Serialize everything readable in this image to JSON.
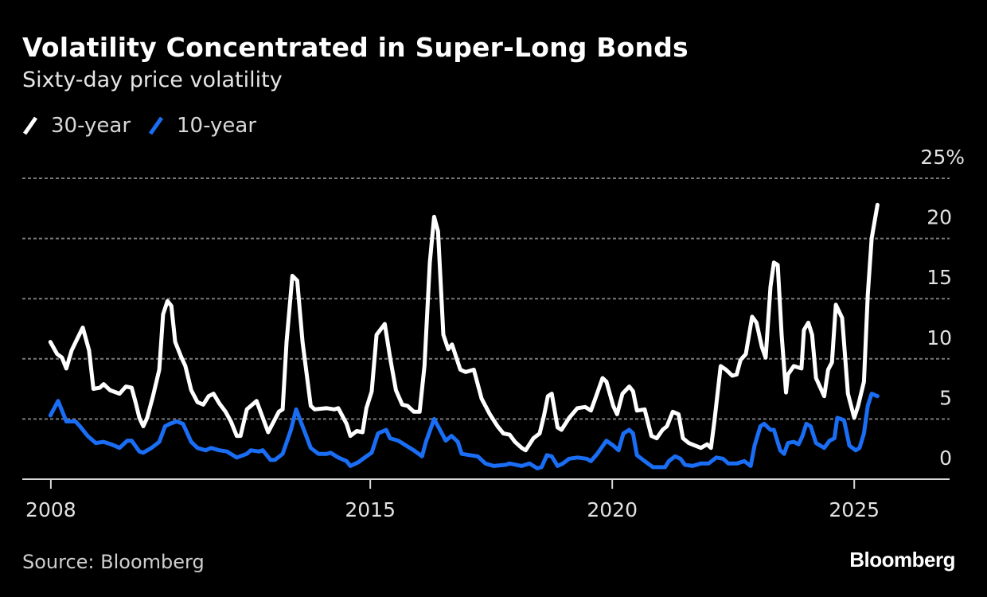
{
  "header": {
    "title": "Volatility Concentrated in Super-Long Bonds",
    "subtitle": "Sixty-day price volatility"
  },
  "footer": {
    "source": "Source: Bloomberg",
    "logo": "Bloomberg"
  },
  "colors": {
    "background": "#000000",
    "series_30y": "#ffffff",
    "series_10y": "#1a6ef5",
    "grid": "#7a7a7a",
    "axis": "#d9d9d9"
  },
  "chart_data": {
    "type": "line",
    "title": "Volatility Concentrated in Super-Long Bonds",
    "subtitle": "Sixty-day price volatility",
    "xlabel": "",
    "ylabel": "",
    "xlim": [
      2007.81,
      2026.97
    ],
    "ylim": [
      0,
      25
    ],
    "grid": true,
    "legend_position": "top-left",
    "y_ticks": [
      {
        "value": 0,
        "label": "0"
      },
      {
        "value": 5,
        "label": "5"
      },
      {
        "value": 10,
        "label": "10"
      },
      {
        "value": 15,
        "label": "15"
      },
      {
        "value": 20,
        "label": "20"
      },
      {
        "value": 25,
        "label": "25%"
      }
    ],
    "x_ticks": [
      {
        "value": 2008.4,
        "label": "2008"
      },
      {
        "value": 2015,
        "label": "2015"
      },
      {
        "value": 2020,
        "label": "2020"
      },
      {
        "value": 2025,
        "label": "2025"
      }
    ],
    "series": [
      {
        "name": "30-year",
        "color": "#ffffff",
        "points": [
          [
            2008.39,
            11.4
          ],
          [
            2008.53,
            10.4
          ],
          [
            2008.63,
            10.1
          ],
          [
            2008.72,
            9.2
          ],
          [
            2008.83,
            10.7
          ],
          [
            2008.95,
            11.7
          ],
          [
            2009.06,
            12.6
          ],
          [
            2009.19,
            10.7
          ],
          [
            2009.28,
            7.5
          ],
          [
            2009.41,
            7.6
          ],
          [
            2009.49,
            7.9
          ],
          [
            2009.62,
            7.4
          ],
          [
            2009.82,
            7.1
          ],
          [
            2009.95,
            7.7
          ],
          [
            2010.07,
            7.6
          ],
          [
            2010.15,
            6.4
          ],
          [
            2010.23,
            5.1
          ],
          [
            2010.31,
            4.4
          ],
          [
            2010.39,
            5.1
          ],
          [
            2010.51,
            6.9
          ],
          [
            2010.64,
            9.1
          ],
          [
            2010.72,
            13.7
          ],
          [
            2010.81,
            14.8
          ],
          [
            2010.89,
            14.4
          ],
          [
            2010.97,
            11.4
          ],
          [
            2011.09,
            10.2
          ],
          [
            2011.18,
            9.4
          ],
          [
            2011.3,
            7.4
          ],
          [
            2011.43,
            6.4
          ],
          [
            2011.55,
            6.2
          ],
          [
            2011.66,
            6.9
          ],
          [
            2011.76,
            7.1
          ],
          [
            2011.88,
            6.3
          ],
          [
            2012.01,
            5.6
          ],
          [
            2012.12,
            4.8
          ],
          [
            2012.24,
            3.6
          ],
          [
            2012.32,
            3.6
          ],
          [
            2012.45,
            5.8
          ],
          [
            2012.65,
            6.5
          ],
          [
            2012.89,
            3.9
          ],
          [
            2013.11,
            5.6
          ],
          [
            2013.19,
            5.8
          ],
          [
            2013.27,
            11.4
          ],
          [
            2013.39,
            16.9
          ],
          [
            2013.49,
            16.5
          ],
          [
            2013.6,
            11.4
          ],
          [
            2013.77,
            6.1
          ],
          [
            2013.85,
            5.8
          ],
          [
            2014.1,
            5.9
          ],
          [
            2014.26,
            5.8
          ],
          [
            2014.34,
            5.9
          ],
          [
            2014.51,
            4.6
          ],
          [
            2014.59,
            3.6
          ],
          [
            2014.72,
            4.0
          ],
          [
            2014.84,
            3.9
          ],
          [
            2014.92,
            5.9
          ],
          [
            2015.03,
            7.3
          ],
          [
            2015.13,
            12.0
          ],
          [
            2015.3,
            12.9
          ],
          [
            2015.41,
            10.1
          ],
          [
            2015.53,
            7.4
          ],
          [
            2015.66,
            6.2
          ],
          [
            2015.77,
            6.1
          ],
          [
            2015.9,
            5.6
          ],
          [
            2016.02,
            5.6
          ],
          [
            2016.12,
            9.4
          ],
          [
            2016.23,
            18.0
          ],
          [
            2016.32,
            21.8
          ],
          [
            2016.4,
            20.6
          ],
          [
            2016.51,
            12.0
          ],
          [
            2016.61,
            10.8
          ],
          [
            2016.69,
            11.2
          ],
          [
            2016.86,
            9.1
          ],
          [
            2016.97,
            8.9
          ],
          [
            2017.14,
            9.1
          ],
          [
            2017.3,
            6.7
          ],
          [
            2017.47,
            5.4
          ],
          [
            2017.63,
            4.4
          ],
          [
            2017.75,
            3.8
          ],
          [
            2017.88,
            3.7
          ],
          [
            2017.99,
            3.1
          ],
          [
            2018.13,
            2.6
          ],
          [
            2018.21,
            2.4
          ],
          [
            2018.37,
            3.4
          ],
          [
            2018.5,
            3.8
          ],
          [
            2018.59,
            5.3
          ],
          [
            2018.67,
            6.9
          ],
          [
            2018.75,
            7.1
          ],
          [
            2018.87,
            4.3
          ],
          [
            2018.95,
            4.1
          ],
          [
            2019.11,
            5.1
          ],
          [
            2019.28,
            5.9
          ],
          [
            2019.44,
            6.0
          ],
          [
            2019.56,
            5.7
          ],
          [
            2019.65,
            6.7
          ],
          [
            2019.8,
            8.4
          ],
          [
            2019.88,
            8.1
          ],
          [
            2020.02,
            6.1
          ],
          [
            2020.1,
            5.4
          ],
          [
            2020.21,
            7.1
          ],
          [
            2020.35,
            7.7
          ],
          [
            2020.43,
            7.3
          ],
          [
            2020.51,
            5.7
          ],
          [
            2020.67,
            5.8
          ],
          [
            2020.81,
            3.6
          ],
          [
            2020.92,
            3.4
          ],
          [
            2021.04,
            4.1
          ],
          [
            2021.13,
            4.4
          ],
          [
            2021.25,
            5.6
          ],
          [
            2021.37,
            5.4
          ],
          [
            2021.46,
            3.4
          ],
          [
            2021.58,
            3.0
          ],
          [
            2021.83,
            2.6
          ],
          [
            2021.96,
            2.9
          ],
          [
            2022.04,
            2.6
          ],
          [
            2022.11,
            4.8
          ],
          [
            2022.24,
            9.4
          ],
          [
            2022.35,
            9.1
          ],
          [
            2022.48,
            8.6
          ],
          [
            2022.57,
            8.7
          ],
          [
            2022.65,
            9.9
          ],
          [
            2022.76,
            10.4
          ],
          [
            2022.89,
            13.5
          ],
          [
            2022.98,
            13.0
          ],
          [
            2023.09,
            11.0
          ],
          [
            2023.17,
            10.1
          ],
          [
            2023.27,
            16.0
          ],
          [
            2023.34,
            18.0
          ],
          [
            2023.42,
            17.8
          ],
          [
            2023.5,
            12.0
          ],
          [
            2023.59,
            7.2
          ],
          [
            2023.63,
            8.7
          ],
          [
            2023.75,
            9.4
          ],
          [
            2023.91,
            9.2
          ],
          [
            2023.96,
            12.4
          ],
          [
            2024.05,
            13.0
          ],
          [
            2024.13,
            12.0
          ],
          [
            2024.21,
            8.4
          ],
          [
            2024.38,
            6.9
          ],
          [
            2024.46,
            9.1
          ],
          [
            2024.54,
            9.7
          ],
          [
            2024.62,
            14.5
          ],
          [
            2024.75,
            13.4
          ],
          [
            2024.87,
            7.1
          ],
          [
            2025.0,
            5.1
          ],
          [
            2025.08,
            6.1
          ],
          [
            2025.2,
            8.1
          ],
          [
            2025.28,
            15.3
          ],
          [
            2025.36,
            20.0
          ],
          [
            2025.48,
            22.8
          ]
        ]
      },
      {
        "name": "10-year",
        "color": "#1a6ef5",
        "points": [
          [
            2008.39,
            5.3
          ],
          [
            2008.55,
            6.5
          ],
          [
            2008.72,
            4.8
          ],
          [
            2008.91,
            4.8
          ],
          [
            2009.0,
            4.4
          ],
          [
            2009.16,
            3.6
          ],
          [
            2009.33,
            3.0
          ],
          [
            2009.49,
            3.1
          ],
          [
            2009.65,
            2.9
          ],
          [
            2009.82,
            2.6
          ],
          [
            2009.98,
            3.2
          ],
          [
            2010.07,
            3.2
          ],
          [
            2010.23,
            2.3
          ],
          [
            2010.31,
            2.2
          ],
          [
            2010.48,
            2.6
          ],
          [
            2010.64,
            3.1
          ],
          [
            2010.76,
            4.4
          ],
          [
            2010.86,
            4.6
          ],
          [
            2011.0,
            4.8
          ],
          [
            2011.13,
            4.6
          ],
          [
            2011.3,
            3.1
          ],
          [
            2011.43,
            2.6
          ],
          [
            2011.6,
            2.4
          ],
          [
            2011.71,
            2.6
          ],
          [
            2011.88,
            2.4
          ],
          [
            2012.04,
            2.3
          ],
          [
            2012.24,
            1.8
          ],
          [
            2012.45,
            2.1
          ],
          [
            2012.53,
            2.4
          ],
          [
            2012.7,
            2.3
          ],
          [
            2012.78,
            2.4
          ],
          [
            2012.94,
            1.6
          ],
          [
            2013.03,
            1.6
          ],
          [
            2013.19,
            2.1
          ],
          [
            2013.36,
            4.1
          ],
          [
            2013.47,
            5.8
          ],
          [
            2013.6,
            4.4
          ],
          [
            2013.77,
            2.6
          ],
          [
            2013.93,
            2.1
          ],
          [
            2014.1,
            2.1
          ],
          [
            2014.18,
            2.2
          ],
          [
            2014.34,
            1.8
          ],
          [
            2014.51,
            1.5
          ],
          [
            2014.59,
            1.1
          ],
          [
            2014.75,
            1.4
          ],
          [
            2014.92,
            1.9
          ],
          [
            2015.03,
            2.2
          ],
          [
            2015.16,
            3.8
          ],
          [
            2015.33,
            4.1
          ],
          [
            2015.41,
            3.4
          ],
          [
            2015.58,
            3.2
          ],
          [
            2015.74,
            2.8
          ],
          [
            2015.9,
            2.4
          ],
          [
            2016.07,
            1.9
          ],
          [
            2016.15,
            3.1
          ],
          [
            2016.32,
            5.0
          ],
          [
            2016.48,
            3.8
          ],
          [
            2016.56,
            3.2
          ],
          [
            2016.68,
            3.6
          ],
          [
            2016.81,
            3.1
          ],
          [
            2016.89,
            2.1
          ],
          [
            2017.06,
            2.0
          ],
          [
            2017.22,
            1.9
          ],
          [
            2017.38,
            1.3
          ],
          [
            2017.55,
            1.1
          ],
          [
            2017.8,
            1.2
          ],
          [
            2017.88,
            1.3
          ],
          [
            2018.13,
            1.1
          ],
          [
            2018.29,
            1.3
          ],
          [
            2018.45,
            0.9
          ],
          [
            2018.54,
            1.0
          ],
          [
            2018.65,
            2.0
          ],
          [
            2018.75,
            1.9
          ],
          [
            2018.87,
            1.1
          ],
          [
            2018.98,
            1.3
          ],
          [
            2019.11,
            1.7
          ],
          [
            2019.28,
            1.8
          ],
          [
            2019.47,
            1.7
          ],
          [
            2019.56,
            1.5
          ],
          [
            2019.69,
            2.1
          ],
          [
            2019.88,
            3.2
          ],
          [
            2020.02,
            2.8
          ],
          [
            2020.13,
            2.4
          ],
          [
            2020.23,
            3.8
          ],
          [
            2020.35,
            4.1
          ],
          [
            2020.43,
            3.8
          ],
          [
            2020.51,
            2.0
          ],
          [
            2020.67,
            1.5
          ],
          [
            2020.84,
            1.0
          ],
          [
            2021.09,
            1.0
          ],
          [
            2021.17,
            1.5
          ],
          [
            2021.3,
            1.9
          ],
          [
            2021.41,
            1.7
          ],
          [
            2021.5,
            1.2
          ],
          [
            2021.66,
            1.1
          ],
          [
            2021.83,
            1.3
          ],
          [
            2021.99,
            1.3
          ],
          [
            2022.15,
            1.8
          ],
          [
            2022.29,
            1.7
          ],
          [
            2022.4,
            1.3
          ],
          [
            2022.57,
            1.3
          ],
          [
            2022.73,
            1.5
          ],
          [
            2022.86,
            1.1
          ],
          [
            2022.94,
            2.8
          ],
          [
            2023.06,
            4.4
          ],
          [
            2023.14,
            4.6
          ],
          [
            2023.27,
            4.1
          ],
          [
            2023.34,
            4.1
          ],
          [
            2023.47,
            2.4
          ],
          [
            2023.55,
            2.1
          ],
          [
            2023.63,
            3.0
          ],
          [
            2023.75,
            3.1
          ],
          [
            2023.85,
            2.9
          ],
          [
            2023.93,
            3.6
          ],
          [
            2024.01,
            4.6
          ],
          [
            2024.1,
            4.4
          ],
          [
            2024.21,
            3.0
          ],
          [
            2024.38,
            2.6
          ],
          [
            2024.49,
            3.2
          ],
          [
            2024.59,
            3.4
          ],
          [
            2024.65,
            5.1
          ],
          [
            2024.79,
            4.9
          ],
          [
            2024.9,
            2.8
          ],
          [
            2025.03,
            2.4
          ],
          [
            2025.11,
            2.6
          ],
          [
            2025.2,
            3.8
          ],
          [
            2025.28,
            6.1
          ],
          [
            2025.36,
            7.1
          ],
          [
            2025.48,
            6.9
          ]
        ]
      }
    ]
  }
}
